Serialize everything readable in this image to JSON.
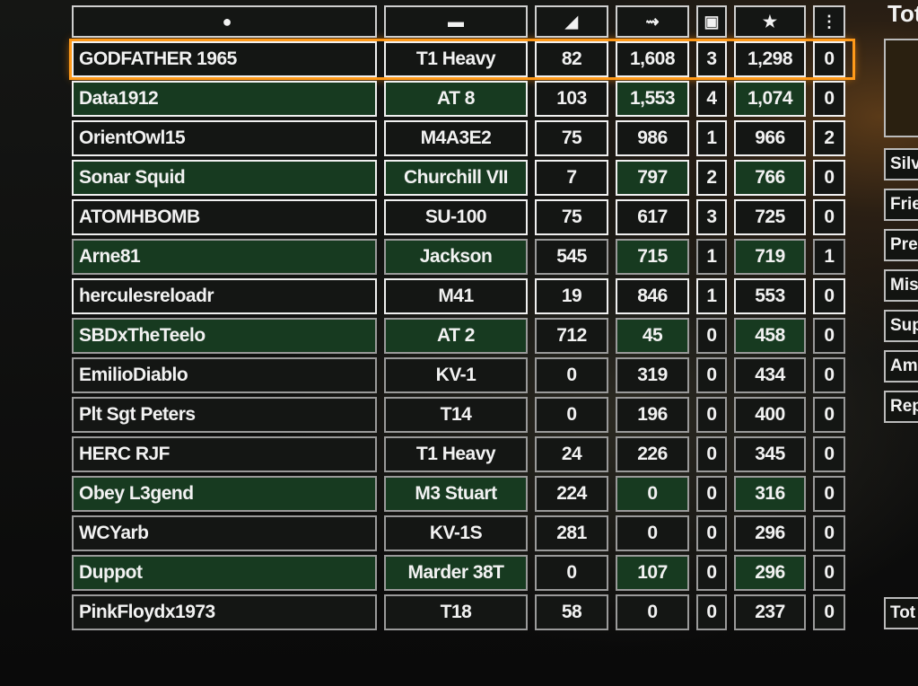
{
  "header": {
    "player_icon": "person-icon",
    "vehicle_icon": "tank-icon",
    "col1_icon": "shield-icon",
    "col2_icon": "gun-damage-icon",
    "col3_icon": "tank-kills-icon",
    "col4_icon": "star-icon",
    "col5_icon": "medal-icon"
  },
  "highlight_color": "#ff9a1a",
  "rows": [
    {
      "name": "GODFATHER 1965",
      "vehicle": "T1 Heavy",
      "c1": "82",
      "c2": "1,608",
      "c3": "3",
      "c4": "1,298",
      "c5": "0"
    },
    {
      "name": "Data1912",
      "vehicle": "AT 8",
      "c1": "103",
      "c2": "1,553",
      "c3": "4",
      "c4": "1,074",
      "c5": "0"
    },
    {
      "name": "OrientOwl15",
      "vehicle": "M4A3E2",
      "c1": "75",
      "c2": "986",
      "c3": "1",
      "c4": "966",
      "c5": "2"
    },
    {
      "name": "Sonar Squid",
      "vehicle": "Churchill VII",
      "c1": "7",
      "c2": "797",
      "c3": "2",
      "c4": "766",
      "c5": "0"
    },
    {
      "name": "ATOMHBOMB",
      "vehicle": "SU-100",
      "c1": "75",
      "c2": "617",
      "c3": "3",
      "c4": "725",
      "c5": "0"
    },
    {
      "name": "Arne81",
      "vehicle": "Jackson",
      "c1": "545",
      "c2": "715",
      "c3": "1",
      "c4": "719",
      "c5": "1"
    },
    {
      "name": "herculesreloadr",
      "vehicle": "M41",
      "c1": "19",
      "c2": "846",
      "c3": "1",
      "c4": "553",
      "c5": "0"
    },
    {
      "name": "SBDxTheTeelo",
      "vehicle": "AT 2",
      "c1": "712",
      "c2": "45",
      "c3": "0",
      "c4": "458",
      "c5": "0"
    },
    {
      "name": "EmilioDiablo",
      "vehicle": "KV-1",
      "c1": "0",
      "c2": "319",
      "c3": "0",
      "c4": "434",
      "c5": "0"
    },
    {
      "name": "Plt Sgt Peters",
      "vehicle": "T14",
      "c1": "0",
      "c2": "196",
      "c3": "0",
      "c4": "400",
      "c5": "0"
    },
    {
      "name": "HERC RJF",
      "vehicle": "T1 Heavy",
      "c1": "24",
      "c2": "226",
      "c3": "0",
      "c4": "345",
      "c5": "0"
    },
    {
      "name": "Obey L3gend",
      "vehicle": "M3 Stuart",
      "c1": "224",
      "c2": "0",
      "c3": "0",
      "c4": "316",
      "c5": "0"
    },
    {
      "name": "WCYarb",
      "vehicle": "KV-1S",
      "c1": "281",
      "c2": "0",
      "c3": "0",
      "c4": "296",
      "c5": "0"
    },
    {
      "name": "Duppot",
      "vehicle": "Marder 38T",
      "c1": "0",
      "c2": "107",
      "c3": "0",
      "c4": "296",
      "c5": "0"
    },
    {
      "name": "PinkFloydx1973",
      "vehicle": "T18",
      "c1": "58",
      "c2": "0",
      "c3": "0",
      "c4": "237",
      "c5": "0"
    }
  ],
  "side": {
    "title": "Tot",
    "items": [
      "Silv",
      "Frie",
      "Pren",
      "Mis",
      "Sup",
      "Am",
      "Rep"
    ],
    "total": "Tot"
  }
}
